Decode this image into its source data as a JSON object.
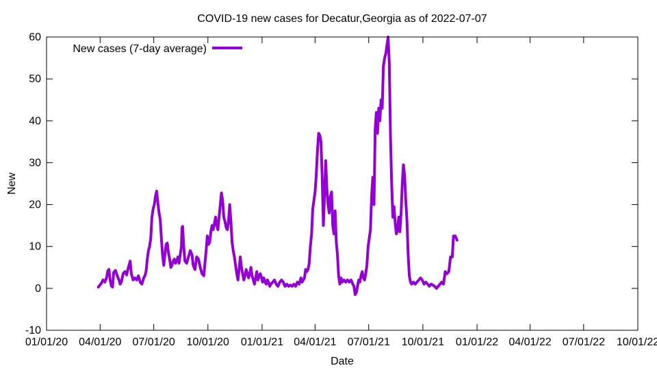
{
  "chart_data": {
    "type": "line",
    "title": "COVID-19 new cases for Decatur,Georgia as of 2022-07-07",
    "xlabel": "Date",
    "ylabel": "New",
    "ylim": [
      -10,
      60
    ],
    "yticks": [
      -10,
      0,
      10,
      20,
      30,
      40,
      50,
      60
    ],
    "xlim_days": [
      0,
      1004
    ],
    "xticks": [
      {
        "label": "01/01/20",
        "day": 0
      },
      {
        "label": "04/01/20",
        "day": 91
      },
      {
        "label": "07/01/20",
        "day": 182
      },
      {
        "label": "10/01/20",
        "day": 274
      },
      {
        "label": "01/01/21",
        "day": 366
      },
      {
        "label": "04/01/21",
        "day": 456
      },
      {
        "label": "07/01/21",
        "day": 547
      },
      {
        "label": "10/01/21",
        "day": 639
      },
      {
        "label": "01/01/22",
        "day": 731
      },
      {
        "label": "04/01/22",
        "day": 821
      },
      {
        "label": "07/01/22",
        "day": 912
      },
      {
        "label": "10/01/22",
        "day": 1004
      }
    ],
    "legend": {
      "position": "top-left",
      "entries": [
        "New cases (7-day average)"
      ]
    },
    "series": [
      {
        "name": "New cases (7-day average)",
        "color": "#9400d3",
        "x_unit": "days since 01/01/20",
        "points": [
          [
            88,
            0.3
          ],
          [
            93,
            1.2
          ],
          [
            96,
            2.0
          ],
          [
            99,
            1.5
          ],
          [
            102,
            2.6
          ],
          [
            104,
            4.2
          ],
          [
            106,
            4.5
          ],
          [
            108,
            2.0
          ],
          [
            110,
            0.6
          ],
          [
            112,
            0.3
          ],
          [
            114,
            3.8
          ],
          [
            117,
            4.3
          ],
          [
            120,
            3.0
          ],
          [
            123,
            2.0
          ],
          [
            125,
            1.0
          ],
          [
            127,
            1.5
          ],
          [
            130,
            3.5
          ],
          [
            133,
            4.0
          ],
          [
            136,
            3.2
          ],
          [
            139,
            5.0
          ],
          [
            142,
            6.5
          ],
          [
            144,
            3.5
          ],
          [
            147,
            2.0
          ],
          [
            150,
            2.5
          ],
          [
            153,
            2.0
          ],
          [
            156,
            3.0
          ],
          [
            159,
            1.5
          ],
          [
            162,
            1.0
          ],
          [
            165,
            2.5
          ],
          [
            167,
            3.0
          ],
          [
            169,
            4.0
          ],
          [
            171,
            7.0
          ],
          [
            173,
            9.0
          ],
          [
            175,
            10.0
          ],
          [
            177,
            12.0
          ],
          [
            179,
            17.0
          ],
          [
            181,
            19.0
          ],
          [
            183,
            20.0
          ],
          [
            185,
            22.0
          ],
          [
            187,
            23.2
          ],
          [
            189,
            20.5
          ],
          [
            191,
            18.0
          ],
          [
            193,
            16.5
          ],
          [
            195,
            12.0
          ],
          [
            197,
            8.0
          ],
          [
            199,
            5.5
          ],
          [
            201,
            8.0
          ],
          [
            203,
            10.5
          ],
          [
            205,
            10.8
          ],
          [
            207,
            8.5
          ],
          [
            209,
            7.0
          ],
          [
            211,
            5.0
          ],
          [
            213,
            5.5
          ],
          [
            215,
            6.5
          ],
          [
            217,
            7.0
          ],
          [
            219,
            6.0
          ],
          [
            221,
            6.5
          ],
          [
            223,
            7.5
          ],
          [
            225,
            6.0
          ],
          [
            227,
            8.0
          ],
          [
            229,
            10.0
          ],
          [
            230,
            14.5
          ],
          [
            231,
            14.8
          ],
          [
            233,
            10.0
          ],
          [
            235,
            6.5
          ],
          [
            238,
            6.0
          ],
          [
            241,
            7.5
          ],
          [
            244,
            9.0
          ],
          [
            247,
            8.0
          ],
          [
            249,
            5.5
          ],
          [
            252,
            4.5
          ],
          [
            255,
            7.5
          ],
          [
            258,
            7.0
          ],
          [
            261,
            5.0
          ],
          [
            264,
            3.5
          ],
          [
            267,
            3.0
          ],
          [
            269,
            6.0
          ],
          [
            271,
            9.0
          ],
          [
            273,
            12.5
          ],
          [
            275,
            10.5
          ],
          [
            277,
            11.0
          ],
          [
            279,
            13.5
          ],
          [
            281,
            15.0
          ],
          [
            283,
            14.0
          ],
          [
            285,
            15.5
          ],
          [
            287,
            17.0
          ],
          [
            289,
            15.0
          ],
          [
            291,
            14.0
          ],
          [
            293,
            17.0
          ],
          [
            295,
            20.0
          ],
          [
            297,
            22.8
          ],
          [
            299,
            21.0
          ],
          [
            301,
            17.0
          ],
          [
            303,
            16.0
          ],
          [
            305,
            14.5
          ],
          [
            307,
            14.0
          ],
          [
            309,
            16.0
          ],
          [
            311,
            20.0
          ],
          [
            313,
            16.0
          ],
          [
            315,
            11.0
          ],
          [
            317,
            9.0
          ],
          [
            319,
            7.5
          ],
          [
            321,
            5.5
          ],
          [
            323,
            3.5
          ],
          [
            325,
            2.0
          ],
          [
            327,
            4.5
          ],
          [
            329,
            7.5
          ],
          [
            331,
            5.0
          ],
          [
            333,
            3.5
          ],
          [
            335,
            2.0
          ],
          [
            337,
            3.0
          ],
          [
            339,
            4.5
          ],
          [
            341,
            3.5
          ],
          [
            343,
            2.5
          ],
          [
            345,
            3.5
          ],
          [
            347,
            5.0
          ],
          [
            349,
            3.0
          ],
          [
            351,
            2.0
          ],
          [
            353,
            1.0
          ],
          [
            355,
            2.5
          ],
          [
            357,
            4.0
          ],
          [
            359,
            2.0
          ],
          [
            361,
            3.0
          ],
          [
            363,
            3.5
          ],
          [
            365,
            2.5
          ],
          [
            367,
            1.5
          ],
          [
            369,
            2.5
          ],
          [
            371,
            1.5
          ],
          [
            373,
            1.0
          ],
          [
            375,
            2.0
          ],
          [
            377,
            1.5
          ],
          [
            379,
            0.5
          ],
          [
            381,
            1.0
          ],
          [
            384,
            1.5
          ],
          [
            387,
            2.0
          ],
          [
            390,
            1.0
          ],
          [
            393,
            0.5
          ],
          [
            396,
            1.5
          ],
          [
            399,
            2.0
          ],
          [
            402,
            1.5
          ],
          [
            405,
            0.5
          ],
          [
            408,
            1.0
          ],
          [
            411,
            0.5
          ],
          [
            414,
            0.8
          ],
          [
            417,
            0.5
          ],
          [
            420,
            1.0
          ],
          [
            423,
            0.5
          ],
          [
            426,
            1.5
          ],
          [
            429,
            1.0
          ],
          [
            432,
            2.5
          ],
          [
            434,
            1.5
          ],
          [
            436,
            2.0
          ],
          [
            438,
            2.5
          ],
          [
            440,
            4.5
          ],
          [
            442,
            4.0
          ],
          [
            444,
            4.5
          ],
          [
            446,
            6.0
          ],
          [
            448,
            10.0
          ],
          [
            450,
            13.0
          ],
          [
            452,
            19.0
          ],
          [
            454,
            21.0
          ],
          [
            456,
            23.0
          ],
          [
            458,
            27.0
          ],
          [
            460,
            33.0
          ],
          [
            462,
            37.0
          ],
          [
            464,
            36.5
          ],
          [
            466,
            35.0
          ],
          [
            468,
            27.0
          ],
          [
            470,
            15.0
          ],
          [
            472,
            22.0
          ],
          [
            474,
            30.5
          ],
          [
            476,
            24.0
          ],
          [
            478,
            20.0
          ],
          [
            480,
            18.0
          ],
          [
            482,
            22.0
          ],
          [
            484,
            23.0
          ],
          [
            486,
            15.0
          ],
          [
            488,
            13.0
          ],
          [
            490,
            18.5
          ],
          [
            492,
            11.0
          ],
          [
            494,
            8.0
          ],
          [
            496,
            3.0
          ],
          [
            498,
            1.0
          ],
          [
            500,
            2.5
          ],
          [
            502,
            1.5
          ],
          [
            505,
            2.0
          ],
          [
            508,
            1.5
          ],
          [
            511,
            2.0
          ],
          [
            514,
            1.5
          ],
          [
            517,
            2.0
          ],
          [
            520,
            1.0
          ],
          [
            522,
            0.5
          ],
          [
            524,
            -1.5
          ],
          [
            526,
            -1.0
          ],
          [
            528,
            0.5
          ],
          [
            530,
            2.0
          ],
          [
            532,
            1.5
          ],
          [
            534,
            3.0
          ],
          [
            536,
            4.0
          ],
          [
            538,
            2.5
          ],
          [
            540,
            2.0
          ],
          [
            542,
            3.5
          ],
          [
            544,
            5.5
          ],
          [
            546,
            10.0
          ],
          [
            548,
            12.0
          ],
          [
            550,
            14.0
          ],
          [
            552,
            22.0
          ],
          [
            554,
            26.5
          ],
          [
            556,
            20.0
          ],
          [
            558,
            38.0
          ],
          [
            560,
            42.0
          ],
          [
            562,
            37.0
          ],
          [
            564,
            43.0
          ],
          [
            566,
            40.0
          ],
          [
            568,
            45.0
          ],
          [
            570,
            43.0
          ],
          [
            572,
            53.0
          ],
          [
            574,
            55.0
          ],
          [
            576,
            56.0
          ],
          [
            578,
            58.0
          ],
          [
            580,
            60.0
          ],
          [
            582,
            54.0
          ],
          [
            584,
            36.0
          ],
          [
            586,
            25.0
          ],
          [
            588,
            17.0
          ],
          [
            590,
            19.5
          ],
          [
            592,
            15.5
          ],
          [
            594,
            13.0
          ],
          [
            596,
            14.0
          ],
          [
            598,
            17.0
          ],
          [
            600,
            13.5
          ],
          [
            602,
            18.0
          ],
          [
            604,
            25.0
          ],
          [
            606,
            29.5
          ],
          [
            608,
            27.0
          ],
          [
            610,
            21.0
          ],
          [
            612,
            16.0
          ],
          [
            614,
            8.0
          ],
          [
            616,
            3.0
          ],
          [
            618,
            1.5
          ],
          [
            620,
            1.0
          ],
          [
            623,
            1.5
          ],
          [
            626,
            1.0
          ],
          [
            629,
            1.5
          ],
          [
            632,
            2.0
          ],
          [
            635,
            2.5
          ],
          [
            638,
            2.0
          ],
          [
            641,
            1.0
          ],
          [
            644,
            1.5
          ],
          [
            647,
            1.0
          ],
          [
            650,
            0.5
          ],
          [
            653,
            1.0
          ],
          [
            656,
            0.8
          ],
          [
            659,
            0.5
          ],
          [
            662,
            0.0
          ],
          [
            665,
            0.5
          ],
          [
            668,
            1.0
          ],
          [
            671,
            1.5
          ],
          [
            674,
            1.0
          ],
          [
            677,
            4.0
          ],
          [
            680,
            3.5
          ],
          [
            683,
            4.0
          ],
          [
            686,
            7.5
          ],
          [
            689,
            7.5
          ],
          [
            691,
            12.5
          ],
          [
            694,
            12.5
          ],
          [
            697,
            11.5
          ]
        ]
      }
    ]
  }
}
